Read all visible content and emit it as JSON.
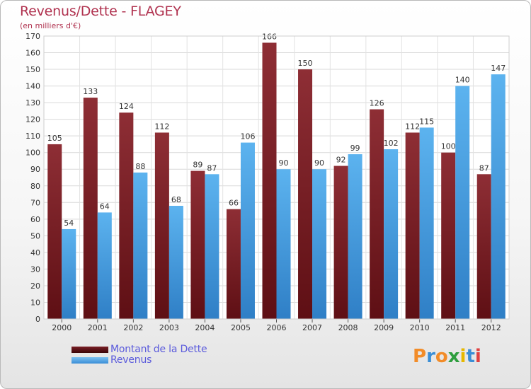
{
  "title": "Revenus/Dette - FLAGEY",
  "subtitle": "(en milliers d'€)",
  "colors": {
    "debt": "#7a1f25",
    "revenue": "#55a9e8",
    "title": "#b0324f",
    "legend_text": "#5b5bdc"
  },
  "legend": [
    {
      "label": "Montant de la Dette",
      "color": "#7a1f25"
    },
    {
      "label": "Revenus",
      "color": "#55a9e8"
    }
  ],
  "logo": {
    "text": "Proxiti"
  },
  "chart_data": {
    "type": "bar",
    "title": "Revenus/Dette - FLAGEY",
    "subtitle": "(en milliers d'€)",
    "categories": [
      "2000",
      "2001",
      "2002",
      "2003",
      "2004",
      "2005",
      "2006",
      "2007",
      "2008",
      "2009",
      "2010",
      "2011",
      "2012"
    ],
    "series": [
      {
        "name": "Montant de la Dette",
        "values": [
          105,
          133,
          124,
          112,
          89,
          66,
          166,
          150,
          92,
          126,
          112,
          100,
          87
        ]
      },
      {
        "name": "Revenus",
        "values": [
          54,
          64,
          88,
          68,
          87,
          106,
          90,
          90,
          99,
          102,
          115,
          140,
          147
        ]
      }
    ],
    "ylim": [
      0,
      170
    ],
    "yticks": [
      0,
      10,
      20,
      30,
      40,
      50,
      60,
      70,
      80,
      90,
      100,
      110,
      120,
      130,
      140,
      150,
      160,
      170
    ],
    "grid": true,
    "legend_position": "bottom-left"
  }
}
